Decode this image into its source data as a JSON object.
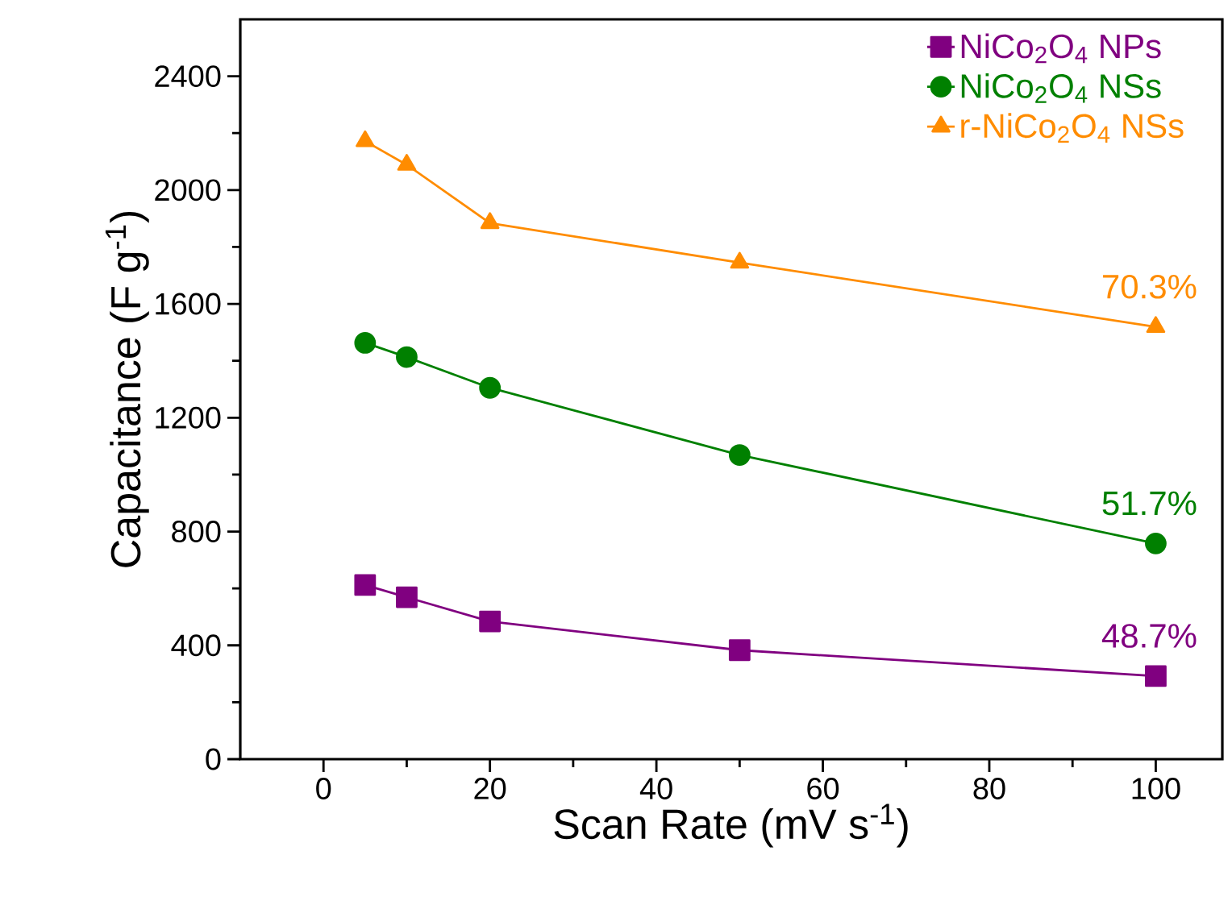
{
  "chart_data": {
    "type": "line",
    "xlabel": "Scan Rate (mV s$^{-1}$)",
    "ylabel": "Capacitance (F g$^{-1}$)",
    "x": [
      5,
      10,
      20,
      50,
      100
    ],
    "series": [
      {
        "name": "NiCo$_{2}$O$_{4}$ NPs",
        "color": "#800080",
        "marker": "square",
        "values": [
          612,
          569,
          484,
          383,
          292
        ]
      },
      {
        "name": "NiCo$_{2}$O$_{4}$ NSs",
        "color": "#008000",
        "marker": "circle",
        "values": [
          1463,
          1413,
          1305,
          1069,
          758
        ]
      },
      {
        "name": "r-NiCo$_{2}$O$_{4}$ NSs",
        "color": "#ff8c00",
        "marker": "triangle",
        "values": [
          2172,
          2089,
          1884,
          1745,
          1519
        ]
      }
    ],
    "xlim": [
      -10,
      108
    ],
    "ylim": [
      0,
      2600
    ],
    "xticks": [
      0,
      20,
      40,
      60,
      80,
      100
    ],
    "yticks": [
      0,
      400,
      800,
      1200,
      1600,
      2000,
      2400
    ],
    "legend": "top right",
    "grid": false,
    "line_style": "solid",
    "annotations": [
      "70.3%",
      "51.7%",
      "48.7%"
    ]
  }
}
